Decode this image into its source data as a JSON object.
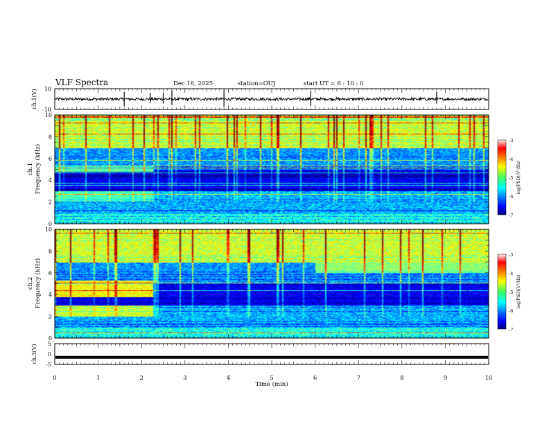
{
  "header": {
    "title": "VLF Spectra",
    "date": "Dec.16, 2025",
    "station": "station=OUJ",
    "start": "start  UT =   6 : 10 : 0"
  },
  "chart_data": [
    {
      "type": "line",
      "ylabel": "ch.1(V)",
      "ylim": [
        -10,
        10
      ],
      "yticks": [
        10,
        -10
      ],
      "xlim": [
        0,
        10
      ],
      "description_note": "waveform trace near 0 V with sparse spikes",
      "baseline": 0,
      "spikes_x": [
        1.6,
        2.2,
        2.5,
        2.7,
        3.9,
        5.9,
        8.8
      ]
    },
    {
      "type": "heatmap",
      "ylabel_top": "ch.1",
      "ylabel": "Frequency  (kHz)",
      "ylim": [
        0,
        10
      ],
      "yticks": [
        0,
        2,
        4,
        6,
        8,
        10
      ],
      "xlim": [
        0,
        10
      ],
      "colorbar": {
        "label": "log(PSD)(V²/Hz)",
        "range": [
          -7,
          -3
        ],
        "ticks": [
          "-3",
          "-4",
          "-5",
          "-6",
          "-7"
        ]
      }
    },
    {
      "type": "heatmap",
      "ylabel_top": "ch.2",
      "ylabel": "Frequency  (kHz)",
      "ylim": [
        0,
        10
      ],
      "yticks": [
        0,
        2,
        4,
        6,
        8,
        10
      ],
      "xlim": [
        0,
        10
      ],
      "colorbar": {
        "label": "log(PSD)(V²/Hz)",
        "range": [
          -7,
          -3
        ],
        "ticks": [
          "-3",
          "-4",
          "-5",
          "-6",
          "-7"
        ]
      }
    },
    {
      "type": "line",
      "ylabel": "ch.3(V)",
      "ylim": [
        -5,
        5
      ],
      "yticks": [
        5,
        0,
        -5
      ],
      "xlim": [
        0,
        10
      ],
      "xlabel": "Time  (min)",
      "xticks": [
        0,
        1,
        2,
        3,
        4,
        5,
        6,
        7,
        8,
        9,
        10
      ],
      "baseline": -1.6
    }
  ],
  "colors": {
    "trace": "#000000",
    "frame": "#000000"
  }
}
